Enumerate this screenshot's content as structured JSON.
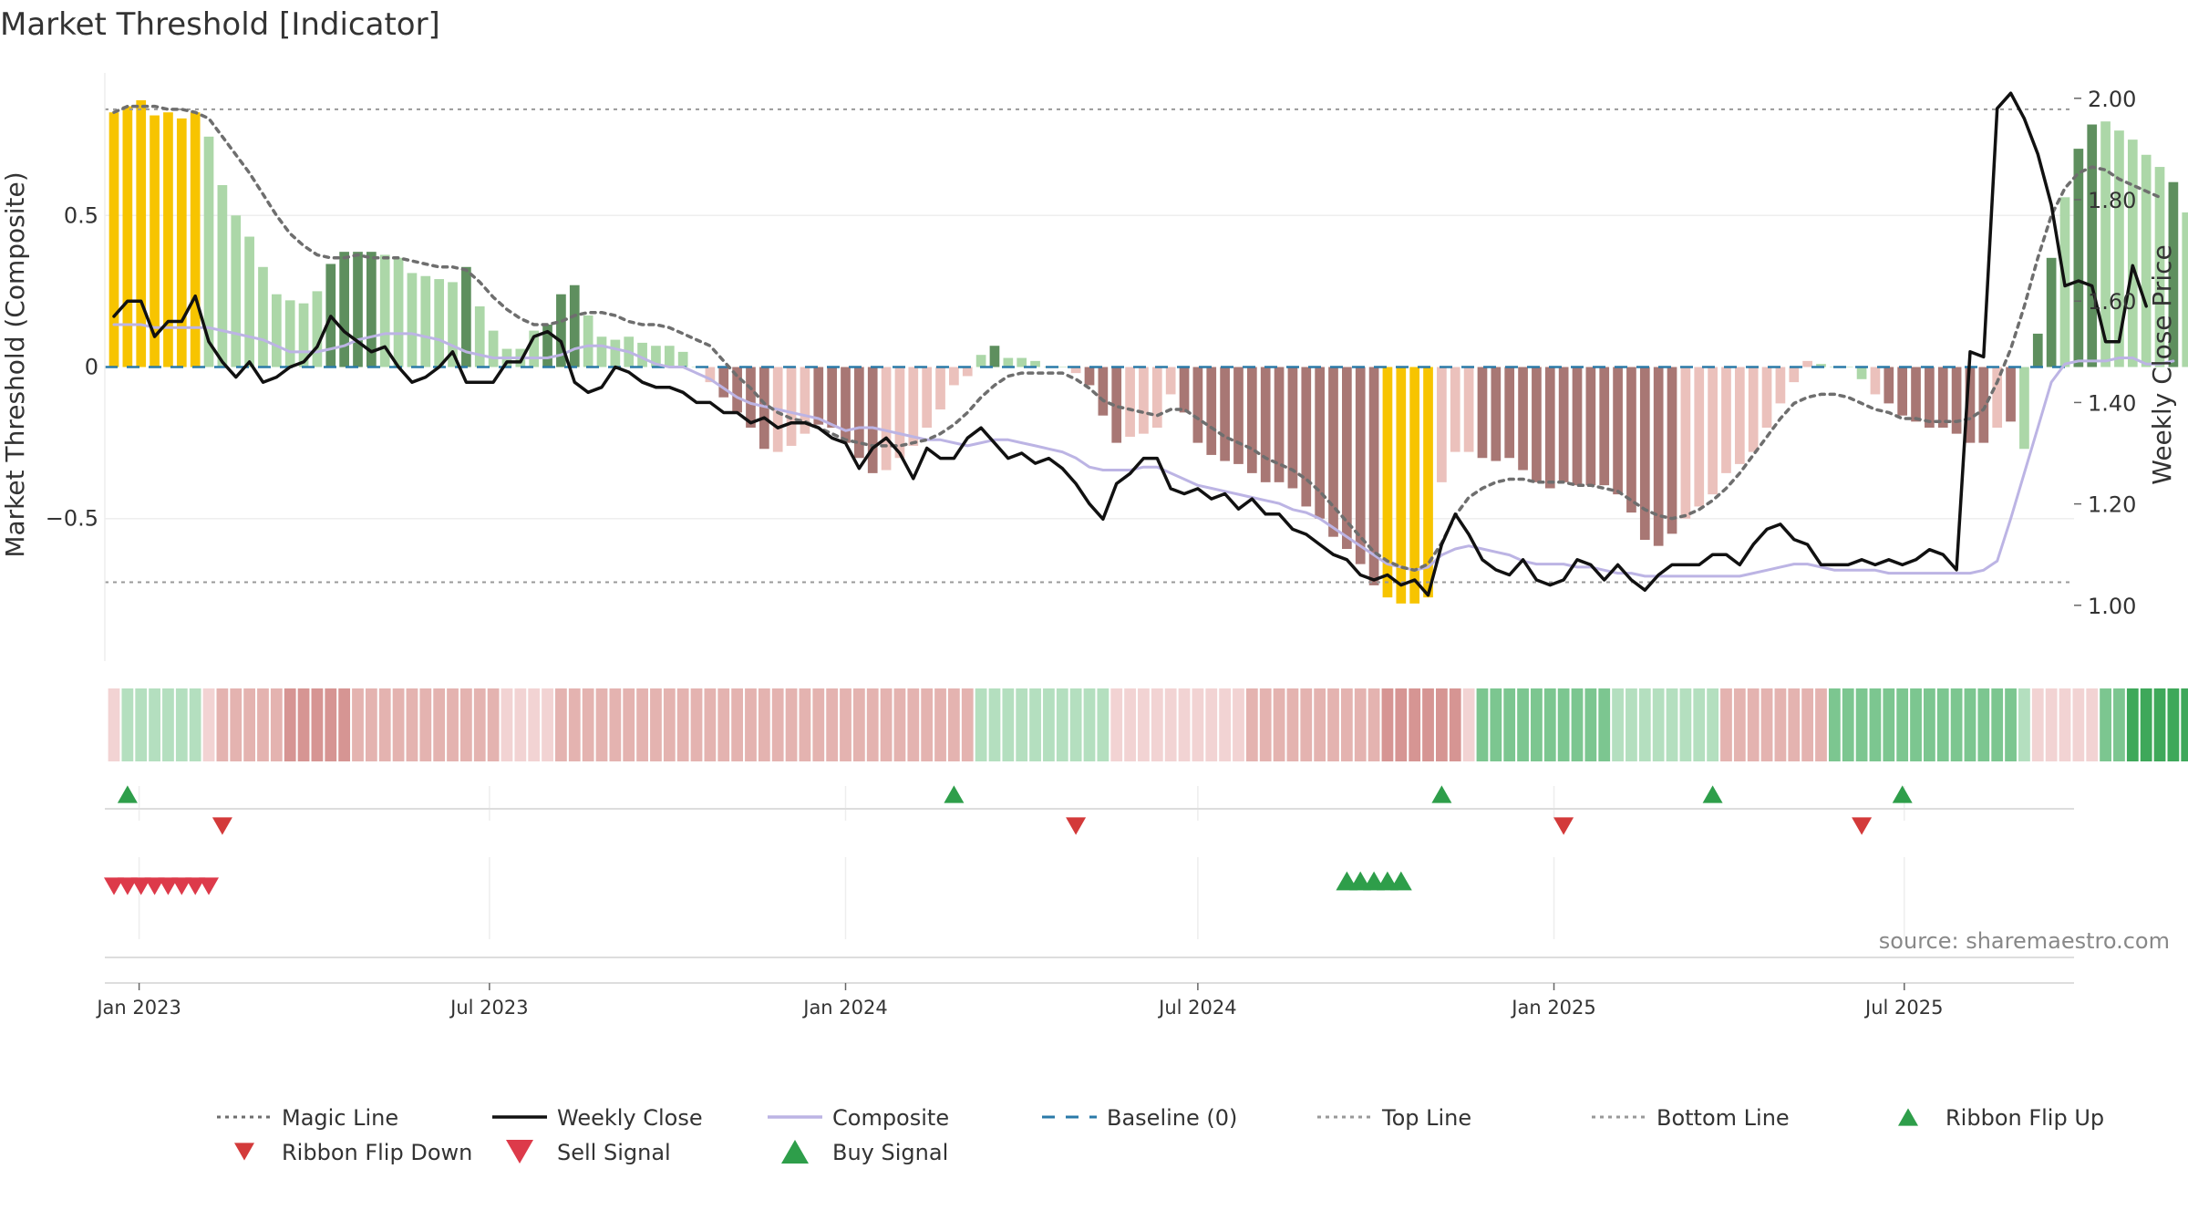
{
  "title": "Market Threshold [Indicator]",
  "colors": {
    "gold": "#f7c400",
    "strong_green": "#5e8f5e",
    "light_green": "#acd7a8",
    "strong_red": "#a87774",
    "light_red": "#ebc1bc",
    "close_line": "#111111",
    "composite_line": "#bcb4e4",
    "magic_line": "#6e6e6e",
    "baseline": "#2a7aa8",
    "ref_line": "#999999",
    "flip_up": "#2e9e4a",
    "flip_down": "#d33a3a",
    "sell": "#dd3a4a",
    "buy": "#2e9e4a"
  },
  "chart_data": {
    "type": "bar",
    "x_start": "2022-12-19",
    "x_step_days": 7,
    "xlim": [
      "2022-12-19",
      "2025-09-22"
    ],
    "x_ticks": [
      {
        "date": "2023-01-01",
        "label": "Jan 2023"
      },
      {
        "date": "2023-07-01",
        "label": "Jul 2023"
      },
      {
        "date": "2024-01-01",
        "label": "Jan 2024"
      },
      {
        "date": "2024-07-01",
        "label": "Jul 2024"
      },
      {
        "date": "2025-01-01",
        "label": "Jan 2025"
      },
      {
        "date": "2025-07-01",
        "label": "Jul 2025"
      }
    ],
    "ylabel": "Market Threshold (Composite)",
    "ylim": [
      -0.97,
      0.97
    ],
    "y_ticks": [
      {
        "value": 0.5,
        "label": "0.5"
      },
      {
        "value": 0,
        "label": "0"
      },
      {
        "value": -0.5,
        "label": "−0.5"
      }
    ],
    "y2label": "Weekly Close Price",
    "y2lim": [
      0.89,
      2.05
    ],
    "y2_ticks": [
      {
        "value": 2.0,
        "label": "2.00"
      },
      {
        "value": 1.8,
        "label": "1.80"
      },
      {
        "value": 1.6,
        "label": "1.60"
      },
      {
        "value": 1.4,
        "label": "1.40"
      },
      {
        "value": 1.2,
        "label": "1.20"
      },
      {
        "value": 1.0,
        "label": "1.00"
      }
    ],
    "top_line": 0.85,
    "bottom_line": -0.71,
    "grid": true,
    "legend_position": "bottom",
    "histogram": [
      0.84,
      0.86,
      0.88,
      0.83,
      0.84,
      0.82,
      0.84,
      0.76,
      0.6,
      0.5,
      0.43,
      0.33,
      0.24,
      0.22,
      0.21,
      0.25,
      0.34,
      0.38,
      0.38,
      0.38,
      0.37,
      0.36,
      0.31,
      0.3,
      0.29,
      0.28,
      0.33,
      0.2,
      0.12,
      0.06,
      0.06,
      0.12,
      0.14,
      0.24,
      0.27,
      0.17,
      0.1,
      0.09,
      0.1,
      0.08,
      0.07,
      0.07,
      0.05,
      0.0,
      -0.05,
      -0.1,
      -0.15,
      -0.2,
      -0.27,
      -0.28,
      -0.26,
      -0.22,
      -0.19,
      -0.2,
      -0.25,
      -0.3,
      -0.35,
      -0.34,
      -0.3,
      -0.26,
      -0.2,
      -0.14,
      -0.06,
      -0.03,
      0.04,
      0.07,
      0.03,
      0.03,
      0.02,
      0.0,
      0.0,
      -0.02,
      -0.06,
      -0.16,
      -0.25,
      -0.23,
      -0.22,
      -0.2,
      -0.09,
      -0.15,
      -0.25,
      -0.29,
      -0.31,
      -0.32,
      -0.35,
      -0.38,
      -0.38,
      -0.4,
      -0.46,
      -0.5,
      -0.56,
      -0.6,
      -0.65,
      -0.72,
      -0.76,
      -0.78,
      -0.78,
      -0.76,
      -0.38,
      -0.28,
      -0.28,
      -0.3,
      -0.31,
      -0.3,
      -0.34,
      -0.38,
      -0.4,
      -0.38,
      -0.39,
      -0.39,
      -0.39,
      -0.42,
      -0.48,
      -0.57,
      -0.59,
      -0.55,
      -0.5,
      -0.46,
      -0.42,
      -0.35,
      -0.32,
      -0.28,
      -0.2,
      -0.12,
      -0.05,
      0.02,
      0.01,
      0.0,
      0.0,
      -0.04,
      -0.09,
      -0.12,
      -0.16,
      -0.18,
      -0.2,
      -0.2,
      -0.22,
      -0.25,
      -0.25,
      -0.2,
      -0.18,
      -0.27,
      0.11,
      0.36,
      0.56,
      0.72,
      0.8,
      0.81,
      0.78,
      0.75,
      0.7,
      0.66,
      0.61,
      0.51,
      0.53,
      0.49
    ],
    "histogram_class": [
      "g",
      "g",
      "g",
      "g",
      "g",
      "g",
      "g",
      "lg",
      "lg",
      "lg",
      "lg",
      "lg",
      "lg",
      "lg",
      "lg",
      "lg",
      "sg",
      "sg",
      "sg",
      "sg",
      "lg",
      "lg",
      "lg",
      "lg",
      "lg",
      "lg",
      "sg",
      "lg",
      "lg",
      "lg",
      "lg",
      "lg",
      "sg",
      "sg",
      "sg",
      "lg",
      "lg",
      "lg",
      "lg",
      "lg",
      "lg",
      "lg",
      "lg",
      "lg",
      "lr",
      "sr",
      "sr",
      "sr",
      "sr",
      "lr",
      "lr",
      "lr",
      "sr",
      "sr",
      "sr",
      "sr",
      "sr",
      "lr",
      "lr",
      "lr",
      "lr",
      "lr",
      "lr",
      "lr",
      "lg",
      "sg",
      "lg",
      "lg",
      "lg",
      "lg",
      "lg",
      "lr",
      "sr",
      "sr",
      "sr",
      "lr",
      "lr",
      "lr",
      "lr",
      "sr",
      "sr",
      "sr",
      "sr",
      "sr",
      "sr",
      "sr",
      "sr",
      "sr",
      "sr",
      "sr",
      "sr",
      "sr",
      "sr",
      "sr",
      "g",
      "g",
      "g",
      "g",
      "lr",
      "lr",
      "lr",
      "sr",
      "sr",
      "sr",
      "sr",
      "sr",
      "sr",
      "sr",
      "sr",
      "sr",
      "sr",
      "sr",
      "sr",
      "sr",
      "sr",
      "sr",
      "lr",
      "lr",
      "lr",
      "lr",
      "lr",
      "lr",
      "lr",
      "lr",
      "lr",
      "lr",
      "lg",
      "lg",
      "lg",
      "lg",
      "lr",
      "sr",
      "sr",
      "sr",
      "sr",
      "sr",
      "sr",
      "sr",
      "sr",
      "lr",
      "sr",
      "lg",
      "sg",
      "sg",
      "lg",
      "sg",
      "sg",
      "lg",
      "lg",
      "lg",
      "lg",
      "lg",
      "sg",
      "lg"
    ],
    "weekly_close": [
      1.57,
      1.6,
      1.6,
      1.53,
      1.56,
      1.56,
      1.61,
      1.52,
      1.48,
      1.45,
      1.48,
      1.44,
      1.45,
      1.47,
      1.48,
      1.51,
      1.57,
      1.54,
      1.52,
      1.5,
      1.51,
      1.47,
      1.44,
      1.45,
      1.47,
      1.5,
      1.44,
      1.44,
      1.44,
      1.48,
      1.48,
      1.53,
      1.54,
      1.52,
      1.44,
      1.42,
      1.43,
      1.47,
      1.46,
      1.44,
      1.43,
      1.43,
      1.42,
      1.4,
      1.4,
      1.38,
      1.38,
      1.36,
      1.37,
      1.35,
      1.36,
      1.36,
      1.35,
      1.33,
      1.32,
      1.27,
      1.31,
      1.33,
      1.3,
      1.25,
      1.31,
      1.29,
      1.29,
      1.33,
      1.35,
      1.32,
      1.29,
      1.3,
      1.28,
      1.29,
      1.27,
      1.24,
      1.2,
      1.17,
      1.24,
      1.26,
      1.29,
      1.29,
      1.23,
      1.22,
      1.23,
      1.21,
      1.22,
      1.19,
      1.21,
      1.18,
      1.18,
      1.15,
      1.14,
      1.12,
      1.1,
      1.09,
      1.06,
      1.05,
      1.06,
      1.04,
      1.05,
      1.02,
      1.12,
      1.18,
      1.14,
      1.09,
      1.07,
      1.06,
      1.09,
      1.05,
      1.04,
      1.05,
      1.09,
      1.08,
      1.05,
      1.08,
      1.05,
      1.03,
      1.06,
      1.08,
      1.08,
      1.08,
      1.1,
      1.1,
      1.08,
      1.12,
      1.15,
      1.16,
      1.13,
      1.12,
      1.08,
      1.08,
      1.08,
      1.09,
      1.08,
      1.09,
      1.08,
      1.09,
      1.11,
      1.1,
      1.07,
      1.5,
      1.49,
      1.98,
      2.01,
      1.96,
      1.89,
      1.79,
      1.63,
      1.64,
      1.63,
      1.52,
      1.52,
      1.67,
      1.59
    ],
    "composite": [
      0.14,
      0.14,
      0.14,
      0.13,
      0.13,
      0.13,
      0.13,
      0.13,
      0.12,
      0.11,
      0.1,
      0.09,
      0.07,
      0.05,
      0.05,
      0.05,
      0.06,
      0.07,
      0.09,
      0.1,
      0.11,
      0.11,
      0.11,
      0.1,
      0.09,
      0.07,
      0.05,
      0.04,
      0.03,
      0.03,
      0.03,
      0.03,
      0.03,
      0.04,
      0.06,
      0.07,
      0.07,
      0.06,
      0.05,
      0.03,
      0.01,
      0.0,
      0.0,
      -0.02,
      -0.04,
      -0.07,
      -0.1,
      -0.12,
      -0.13,
      -0.14,
      -0.15,
      -0.16,
      -0.17,
      -0.19,
      -0.21,
      -0.2,
      -0.2,
      -0.21,
      -0.22,
      -0.23,
      -0.24,
      -0.24,
      -0.25,
      -0.26,
      -0.25,
      -0.24,
      -0.24,
      -0.25,
      -0.26,
      -0.27,
      -0.28,
      -0.3,
      -0.33,
      -0.34,
      -0.34,
      -0.34,
      -0.33,
      -0.33,
      -0.35,
      -0.37,
      -0.39,
      -0.4,
      -0.41,
      -0.42,
      -0.43,
      -0.44,
      -0.45,
      -0.47,
      -0.48,
      -0.5,
      -0.53,
      -0.56,
      -0.59,
      -0.62,
      -0.65,
      -0.66,
      -0.67,
      -0.66,
      -0.62,
      -0.6,
      -0.59,
      -0.6,
      -0.61,
      -0.62,
      -0.64,
      -0.65,
      -0.65,
      -0.65,
      -0.66,
      -0.66,
      -0.67,
      -0.68,
      -0.68,
      -0.69,
      -0.69,
      -0.69,
      -0.69,
      -0.69,
      -0.69,
      -0.69,
      -0.69,
      -0.68,
      -0.67,
      -0.66,
      -0.65,
      -0.65,
      -0.66,
      -0.67,
      -0.67,
      -0.67,
      -0.67,
      -0.68,
      -0.68,
      -0.68,
      -0.68,
      -0.68,
      -0.68,
      -0.68,
      -0.67,
      -0.64,
      -0.5,
      -0.35,
      -0.2,
      -0.05,
      0.01,
      0.02,
      0.02,
      0.02,
      0.03,
      0.03,
      0.01,
      0.01,
      0.02
    ],
    "magic_line": [
      0.84,
      0.86,
      0.86,
      0.86,
      0.85,
      0.85,
      0.84,
      0.82,
      0.76,
      0.7,
      0.64,
      0.57,
      0.5,
      0.44,
      0.4,
      0.37,
      0.36,
      0.36,
      0.37,
      0.36,
      0.36,
      0.36,
      0.35,
      0.34,
      0.33,
      0.33,
      0.32,
      0.28,
      0.23,
      0.19,
      0.16,
      0.14,
      0.14,
      0.15,
      0.17,
      0.18,
      0.18,
      0.17,
      0.15,
      0.14,
      0.14,
      0.13,
      0.11,
      0.09,
      0.07,
      0.02,
      -0.03,
      -0.07,
      -0.12,
      -0.15,
      -0.17,
      -0.18,
      -0.2,
      -0.22,
      -0.24,
      -0.25,
      -0.26,
      -0.26,
      -0.26,
      -0.25,
      -0.24,
      -0.22,
      -0.19,
      -0.15,
      -0.1,
      -0.06,
      -0.03,
      -0.02,
      -0.02,
      -0.02,
      -0.02,
      -0.04,
      -0.07,
      -0.11,
      -0.13,
      -0.14,
      -0.15,
      -0.16,
      -0.14,
      -0.14,
      -0.17,
      -0.2,
      -0.23,
      -0.25,
      -0.27,
      -0.3,
      -0.32,
      -0.34,
      -0.37,
      -0.41,
      -0.46,
      -0.51,
      -0.56,
      -0.61,
      -0.64,
      -0.66,
      -0.67,
      -0.65,
      -0.58,
      -0.49,
      -0.43,
      -0.4,
      -0.38,
      -0.37,
      -0.37,
      -0.38,
      -0.38,
      -0.38,
      -0.39,
      -0.39,
      -0.4,
      -0.41,
      -0.44,
      -0.47,
      -0.49,
      -0.5,
      -0.49,
      -0.47,
      -0.44,
      -0.4,
      -0.35,
      -0.29,
      -0.23,
      -0.17,
      -0.12,
      -0.1,
      -0.09,
      -0.09,
      -0.1,
      -0.12,
      -0.14,
      -0.15,
      -0.17,
      -0.17,
      -0.18,
      -0.18,
      -0.18,
      -0.17,
      -0.14,
      -0.05,
      0.06,
      0.2,
      0.36,
      0.5,
      0.59,
      0.64,
      0.66,
      0.65,
      0.62,
      0.6,
      0.58,
      0.56
    ],
    "ribbon_level": [
      -1,
      1,
      1,
      1,
      1,
      1,
      1,
      -1,
      -2,
      -2,
      -2,
      -2,
      -2,
      -3,
      -3,
      -3,
      -3,
      -3,
      -2,
      -2,
      -2,
      -2,
      -2,
      -2,
      -2,
      -2,
      -2,
      -2,
      -2,
      -1,
      -1,
      -1,
      -1,
      -2,
      -2,
      -2,
      -2,
      -2,
      -2,
      -2,
      -2,
      -2,
      -2,
      -2,
      -2,
      -2,
      -2,
      -2,
      -2,
      -2,
      -2,
      -2,
      -2,
      -2,
      -2,
      -2,
      -2,
      -2,
      -2,
      -2,
      -2,
      -2,
      -2,
      -2,
      1,
      1,
      1,
      1,
      1,
      1,
      1,
      1,
      1,
      1,
      -1,
      -1,
      -1,
      -1,
      -1,
      -1,
      -1,
      -1,
      -1,
      -1,
      -2,
      -2,
      -2,
      -2,
      -2,
      -2,
      -2,
      -2,
      -2,
      -2,
      -3,
      -3,
      -3,
      -3,
      -3,
      -3,
      -1,
      2,
      2,
      2,
      2,
      2,
      2,
      2,
      2,
      2,
      2,
      1,
      1,
      1,
      1,
      1,
      1,
      1,
      1,
      -2,
      -2,
      -2,
      -2,
      -2,
      -2,
      -2,
      -2,
      2,
      2,
      2,
      2,
      2,
      2,
      2,
      2,
      2,
      2,
      2,
      2,
      2,
      2,
      1,
      -1,
      -1,
      -1,
      -1,
      -1,
      2,
      2,
      3,
      3,
      3,
      3,
      3,
      3,
      3,
      3,
      3,
      3,
      2,
      1
    ],
    "ribbon_colors": {
      "3": "#3ea85a",
      "2": "#7cc690",
      "1": "#b4dfbf",
      "-1": "#f2d3d3",
      "-2": "#e4b3b0",
      "-3": "#d69593"
    },
    "ribbon_flip_up": [
      "2022-12-26",
      "2024-02-26",
      "2024-11-04",
      "2025-03-24",
      "2025-06-30"
    ],
    "ribbon_flip_down": [
      "2023-02-13",
      "2024-04-29",
      "2025-01-06",
      "2025-06-09"
    ],
    "sell_signal": [
      "2022-12-19",
      "2022-12-26",
      "2023-01-02",
      "2023-01-09",
      "2023-01-16",
      "2023-01-23",
      "2023-01-30",
      "2023-02-06"
    ],
    "buy_signal": [
      "2024-09-16",
      "2024-09-23",
      "2024-09-30",
      "2024-10-07",
      "2024-10-14"
    ],
    "legend": [
      {
        "label": "Magic Line",
        "kind": "dotted",
        "color": "#6e6e6e"
      },
      {
        "label": "Weekly Close",
        "kind": "solid",
        "color": "#111111"
      },
      {
        "label": "Composite",
        "kind": "solid",
        "color": "#bcb4e4"
      },
      {
        "label": "Baseline (0)",
        "kind": "dashed",
        "color": "#2a7aa8"
      },
      {
        "label": "Top Line",
        "kind": "dotted",
        "color": "#999999"
      },
      {
        "label": "Bottom Line",
        "kind": "dotted",
        "color": "#999999"
      },
      {
        "label": "Ribbon Flip Up",
        "kind": "triangle-up-small",
        "color": "#2e9e4a"
      },
      {
        "label": "Ribbon Flip Down",
        "kind": "triangle-down-small",
        "color": "#d33a3a"
      },
      {
        "label": "Sell Signal",
        "kind": "triangle-down",
        "color": "#dd3a4a"
      },
      {
        "label": "Buy Signal",
        "kind": "triangle-up",
        "color": "#2e9e4a"
      }
    ]
  },
  "source": "source: sharemaestro.com"
}
